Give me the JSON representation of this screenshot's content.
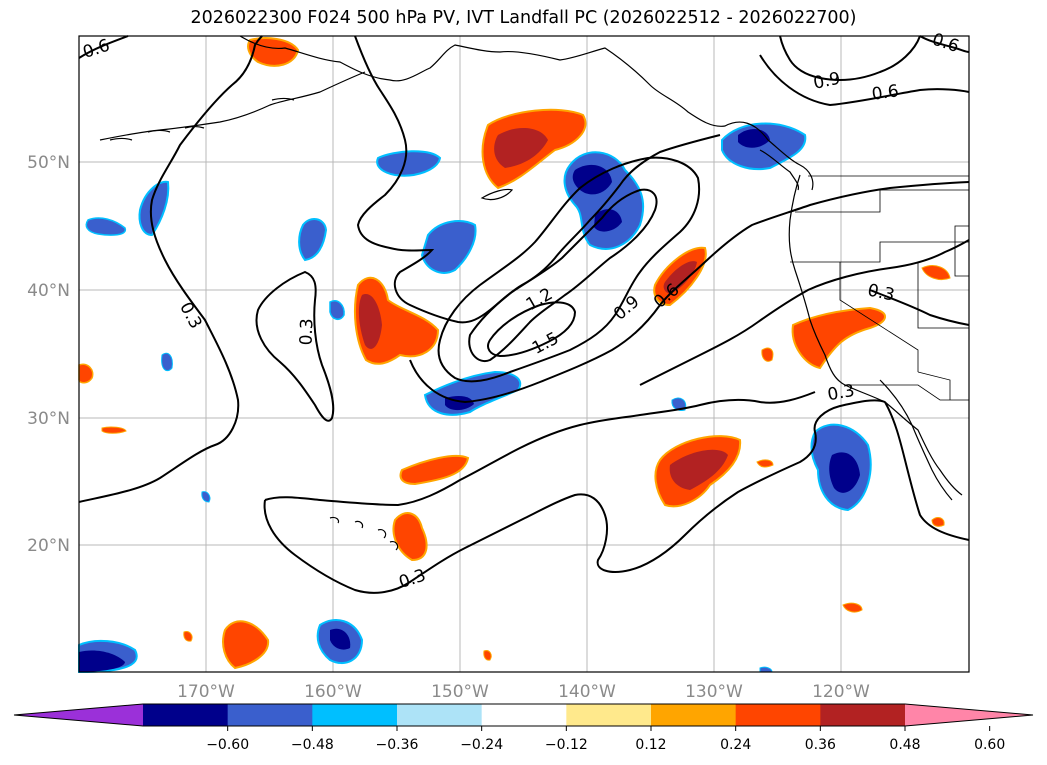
{
  "title": "2026022300 F024 500 hPa PV, IVT Landfall PC (2026022512 - 2026022700)",
  "lat_labels": [
    "50°N",
    "40°N",
    "30°N",
    "20°N"
  ],
  "lon_labels": [
    "170°W",
    "160°W",
    "150°W",
    "140°W",
    "130°W",
    "120°W"
  ],
  "colorbar": {
    "ticks": [
      "−0.60",
      "−0.48",
      "−0.36",
      "−0.24",
      "−0.12",
      "0.12",
      "0.24",
      "0.36",
      "0.48",
      "0.60"
    ],
    "colors": [
      "#9b30d9",
      "#00008b",
      "#3a5fcd",
      "#00bfff",
      "#ade3f7",
      "#ffffff",
      "#ffe98c",
      "#ffa500",
      "#ff4500",
      "#b22222",
      "#ff85a8"
    ]
  },
  "contour_labels": [
    "0.6",
    "0.6",
    "0.9",
    "0.6",
    "0.3",
    "0.3",
    "1.2",
    "1.5",
    "0.9",
    "0.6",
    "0.3",
    "0.3",
    "0.3"
  ],
  "colors": {
    "positive_strong": "#b22222",
    "positive": "#ff4500",
    "positive_edge": "#ffa500",
    "positive_weak": "#ffe98c",
    "negative_strong": "#00008b",
    "negative": "#3a5fcd",
    "negative_edge": "#00bfff"
  }
}
